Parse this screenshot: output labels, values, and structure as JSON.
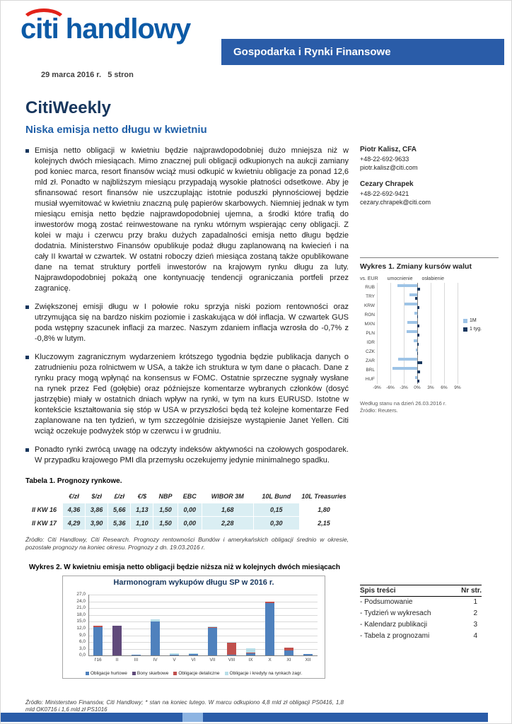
{
  "header": {
    "logo_citi": "citi",
    "logo_handlowy": "handlowy",
    "banner": "Gospodarka i Rynki Finansowe",
    "date_line": "29 marca 2016 r.   5 stron"
  },
  "title": "CitiWeekly",
  "subtitle": "Niska emisja netto długu w kwietniu",
  "bullets": [
    "Emisja netto obligacji w kwietniu będzie najprawdopodobniej dużo mniejsza niż w kolejnych dwóch miesiącach. Mimo znacznej puli obligacji odkupionych na aukcji zamiany pod koniec marca, resort finansów wciąż musi odkupić w kwietniu obligacje za ponad 12,6 mld zł. Ponadto w najbliższym miesiącu przypadają wysokie płatności odsetkowe. Aby je sfinansować resort finansów nie uszczuplając istotnie poduszki płynnościowej będzie musiał wyemitować w kwietniu znaczną pulę papierów skarbowych. Niemniej jednak w tym miesiącu emisja netto będzie najprawdopodobniej ujemna, a środki które trafią do inwestorów mogą zostać reinwestowane na rynku wtórnym wspierając ceny obligacji. Z kolei w maju i czerwcu przy braku dużych zapadalności emisja netto długu będzie dodatnia. Ministerstwo Finansów opublikuje podaż długu zaplanowaną na kwiecień i na cały II kwartał w czwartek. W ostatni roboczy dzień miesiąca zostaną także opublikowane dane na temat struktury portfeli inwestorów na krajowym rynku długu za luty. Najprawdopodobniej pokażą one kontynuację tendencji ograniczania portfeli przez zagranicę.",
    "Zwiększonej emisji długu w I połowie roku sprzyja niski poziom rentowności oraz utrzymująca się na bardzo niskim poziomie i zaskakująca w dół inflacja. W czwartek GUS poda wstępny szacunek inflacji za marzec. Naszym zdaniem inflacja wzrosła do -0,7% z -0,8% w lutym.",
    "Kluczowym zagranicznym wydarzeniem krótszego tygodnia będzie publikacja danych o zatrudnieniu poza rolnictwem w USA, a także ich struktura w tym dane o płacach. Dane z rynku pracy mogą wpłynąć na konsensus w FOMC. Ostatnie sprzeczne sygnały wysłane na rynek przez Fed (gołębie) oraz późniejsze komentarze wybranych członków (dosyć jastrzębie) miały w ostatnich dniach wpływ na rynki, w tym na kurs EURUSD. Istotne w kontekście kształtowania się stóp w USA w przyszłości będą też kolejne komentarze Fed zaplanowane na ten tydzień, w tym szczególnie dzisiejsze wystąpienie Janet Yellen. Citi wciąż oczekuje podwyżek stóp w czerwcu i w grudniu.",
    "Ponadto rynki zwrócą uwagę na odczyty indeksów aktywności na czołowych gospodarek. W przypadku krajowego PMI dla przemysłu oczekujemy jedynie minimalnego spadku."
  ],
  "contacts": [
    {
      "name": "Piotr Kalisz, CFA",
      "phone": "+48-22-692-9633",
      "email": "piotr.kalisz@citi.com"
    },
    {
      "name": "Cezary Chrapek",
      "phone": "+48-22-692-9421",
      "email": "cezary.chrapek@citi.com"
    }
  ],
  "table1": {
    "caption": "Tabela 1. Prognozy rynkowe.",
    "columns": [
      "",
      "€/zł",
      "$/zł",
      "£/zł",
      "€/$",
      "NBP",
      "EBC",
      "WIBOR 3M",
      "10L Bund",
      "10L Treasuries"
    ],
    "rows": [
      {
        "label": "II KW 16",
        "values": [
          "4,36",
          "3,86",
          "5,66",
          "1,13",
          "1,50",
          "0,00",
          "1,68",
          "0,15",
          "1,80"
        ]
      },
      {
        "label": "II KW 17",
        "values": [
          "4,29",
          "3,90",
          "5,36",
          "1,10",
          "1,50",
          "0,00",
          "2,28",
          "0,30",
          "2,15"
        ]
      }
    ],
    "source": "Źródło: Citi Handlowy, Citi Research. Prognozy rentowności Bundów i amerykańskich obligacji średnio w okresie, pozostałe prognozy na koniec okresu. Prognozy z dn. 19.03.2016 r."
  },
  "chart_data": [
    {
      "id": "fx-changes",
      "type": "bar",
      "orientation": "horizontal",
      "title": "Wykres 1. Zmiany kursów walut",
      "axis_label": "vs. EUR",
      "left_label": "umocnienie",
      "right_label": "osłabienie",
      "categories": [
        "RUB",
        "TRY",
        "KRW",
        "RON",
        "MXN",
        "PLN",
        "IDR",
        "CZK",
        "ZAR",
        "BRL",
        "HUF"
      ],
      "series": [
        {
          "name": "1M",
          "color": "#9DC3E6",
          "values": [
            -4.5,
            -1.8,
            -2.8,
            -0.6,
            -2.2,
            -2.4,
            -0.8,
            -0.3,
            -4.2,
            -5.6,
            -0.5
          ]
        },
        {
          "name": "1 tyg.",
          "color": "#17375E",
          "values": [
            0.6,
            -0.4,
            0.5,
            0.2,
            0.5,
            0.4,
            0.3,
            0.1,
            1.1,
            0.7,
            0.4
          ]
        }
      ],
      "xlim": [
        -9,
        9
      ],
      "xtick_values": [
        -9,
        -6,
        -3,
        0,
        3,
        6,
        9
      ],
      "xticks": [
        "-9%",
        "-6%",
        "-3%",
        "0%",
        "3%",
        "6%",
        "9%"
      ],
      "legend_position": "right",
      "footnote1": "Według stanu na dzień 26.03.2016 r.",
      "footnote2": "Źródło: Reuters."
    },
    {
      "id": "debt-redemptions",
      "type": "bar",
      "stacked": true,
      "caption": "Wykres 2.  W kwietniu emisja netto obligacji będzie niższa niż w kolejnych dwóch miesiącach",
      "title": "Harmonogram wykupów długu SP w 2016 r.",
      "categories": [
        "I'16",
        "II",
        "III",
        "IV",
        "V",
        "VI",
        "VII",
        "VIII",
        "IX",
        "X",
        "XI",
        "XII"
      ],
      "series": [
        {
          "name": "Obligacje hurtowe",
          "color": "#4F81BD",
          "values": [
            12.6,
            0,
            0.4,
            15.3,
            0.4,
            0.6,
            12.4,
            0.3,
            1.0,
            23.2,
            2.4,
            0.8
          ]
        },
        {
          "name": "Bony skarbowe",
          "color": "#604A7B",
          "values": [
            0,
            13.4,
            0,
            0,
            0,
            0,
            0,
            0,
            0,
            0,
            0,
            0
          ]
        },
        {
          "name": "Obligacje detaliczne",
          "color": "#C0504D",
          "values": [
            0.6,
            0,
            0,
            0,
            0,
            0,
            0.2,
            5.4,
            0.2,
            0.8,
            1.2,
            0
          ]
        },
        {
          "name": "Obligacje i kredyty na rynkach zagr.",
          "color": "#B7DEE8",
          "values": [
            0,
            0,
            0,
            0.7,
            0.5,
            0.5,
            0.3,
            0.4,
            2.0,
            0,
            0,
            0
          ]
        }
      ],
      "ylim": [
        0,
        27
      ],
      "ytick_step": 3,
      "yticks": [
        "0,0",
        "3,0",
        "6,0",
        "9,0",
        "12,0",
        "15,0",
        "18,0",
        "21,0",
        "24,0",
        "27,0"
      ],
      "legend_position": "bottom",
      "grid": true
    }
  ],
  "toc": {
    "title": "Spis treści",
    "col_header": "Nr str.",
    "items": [
      {
        "label": "- Podsumowanie",
        "page": "1"
      },
      {
        "label": "- Tydzień w wykresach",
        "page": "2"
      },
      {
        "label": "- Kalendarz publikacji",
        "page": "3"
      },
      {
        "label": "- Tabela z prognozami",
        "page": "4"
      }
    ]
  },
  "footer_source": "Źródło: Ministerstwo Finansów, Citi Handlowy; * stan na koniec lutego. W marcu odkupiono 4,8 mld zł obligacji PS0416, 1,8 mld OK0716 i 1,6 mld zł PS1016",
  "colors": {
    "banner_blue": "#2A5CA8",
    "citi_blue": "#0C5AA6",
    "citi_red": "#E2231A",
    "headline_navy": "#17365D",
    "subtitle_blue": "#1F5FA8",
    "table_fill": "#DAEEF3",
    "bottom_bar_light": "#8DB4E2"
  }
}
